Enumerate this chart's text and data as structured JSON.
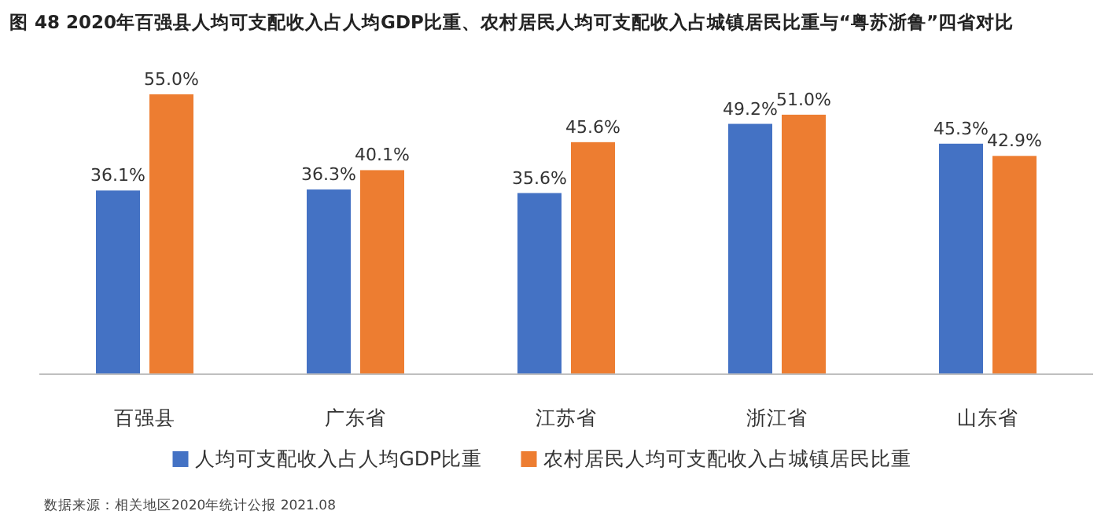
{
  "chart_data": {
    "type": "bar",
    "title": "图 48  2020年百强县人均可支配收入占人均GDP比重、农村居民人均可支配收入占城镇居民比重与“粤苏浙鲁”四省对比",
    "categories": [
      "百强县",
      "广东省",
      "江苏省",
      "浙江省",
      "山东省"
    ],
    "series": [
      {
        "name": "人均可支配收入占人均GDP比重",
        "color": "#4472c4",
        "values": [
          36.1,
          36.3,
          35.6,
          49.2,
          45.3
        ],
        "value_labels": [
          "36.1%",
          "36.3%",
          "35.6%",
          "49.2%",
          "45.3%"
        ]
      },
      {
        "name": "农村居民人均可支配收入占城镇居民比重",
        "color": "#ed7d31",
        "values": [
          55.0,
          40.1,
          45.6,
          51.0,
          42.9
        ],
        "value_labels": [
          "55.0%",
          "40.1%",
          "45.6%",
          "51.0%",
          "42.9%"
        ]
      }
    ],
    "legend": "bottom",
    "annotations": [
      "数据来源：相关地区2020年统计公报 2021.08"
    ]
  }
}
